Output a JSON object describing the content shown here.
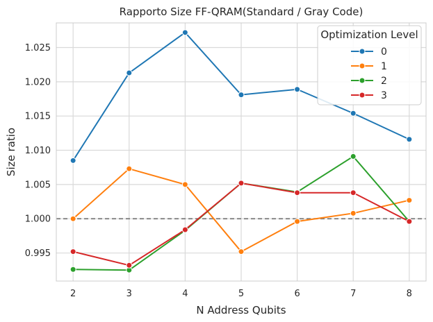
{
  "chart_data": {
    "type": "line",
    "title": "Rapporto Size FF-QRAM(Standard / Gray Code)",
    "xlabel": "N Address Qubits",
    "ylabel": "Size ratio",
    "x": [
      2,
      3,
      4,
      5,
      6,
      7,
      8
    ],
    "xlim": [
      1.7,
      8.3
    ],
    "ylim": [
      0.9909,
      1.0286
    ],
    "yticks": [
      "0.995",
      "1.000",
      "1.005",
      "1.010",
      "1.015",
      "1.020",
      "1.025"
    ],
    "xticks": [
      "2",
      "3",
      "4",
      "5",
      "6",
      "7",
      "8"
    ],
    "reference_line": {
      "y": 1.0,
      "style": "dashed",
      "color": "#808080"
    },
    "grid": true,
    "legend": {
      "title": "Optimization Level",
      "placement": "top-right"
    },
    "series": [
      {
        "name": "0",
        "color": "#1f77b4",
        "values": [
          1.0085,
          1.0213,
          1.0272,
          1.0181,
          1.0189,
          1.0154,
          1.0116
        ]
      },
      {
        "name": "1",
        "color": "#ff7f0e",
        "values": [
          1.0,
          1.0073,
          1.005,
          0.9952,
          0.9996,
          1.0008,
          1.0027
        ]
      },
      {
        "name": "2",
        "color": "#2ca02c",
        "values": [
          0.9926,
          0.9925,
          0.9983,
          1.0052,
          1.0039,
          1.0091,
          0.9996
        ]
      },
      {
        "name": "3",
        "color": "#d62728",
        "values": [
          0.9952,
          0.9932,
          0.9984,
          1.0052,
          1.0038,
          1.0038,
          0.9996
        ]
      }
    ]
  }
}
